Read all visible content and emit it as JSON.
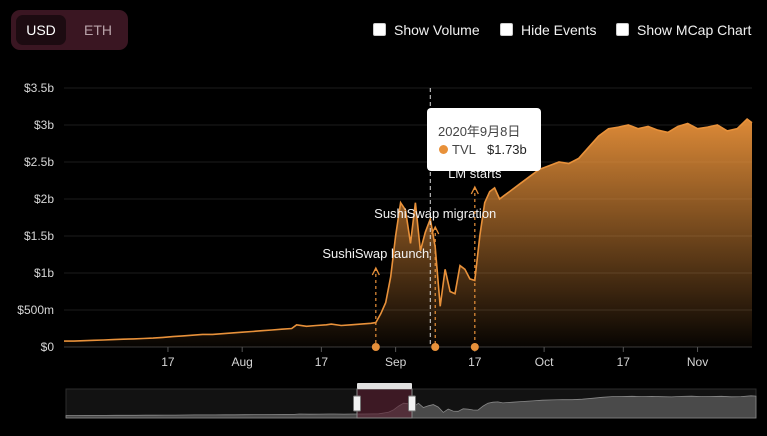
{
  "currency_toggle": {
    "options": [
      "USD",
      "ETH"
    ],
    "selected": "USD"
  },
  "options": {
    "show_volume": {
      "label": "Show Volume",
      "checked": false
    },
    "hide_events": {
      "label": "Hide Events",
      "checked": false
    },
    "show_mcap": {
      "label": "Show MCap Chart",
      "checked": false
    }
  },
  "tooltip": {
    "date": "2020年9月8日",
    "series": "TVL",
    "value": "$1.73b"
  },
  "colors": {
    "line": "#e8913a",
    "background": "#000000",
    "toggle_bg": "#3a1622",
    "navigator_highlight": "#5a1e30"
  },
  "chart_data": {
    "type": "area",
    "series": [
      {
        "name": "TVL",
        "unit": "USD billions",
        "points": [
          [
            "2020-06-26",
            0.08
          ],
          [
            "2020-06-28",
            0.08
          ],
          [
            "2020-06-30",
            0.085
          ],
          [
            "2020-07-02",
            0.09
          ],
          [
            "2020-07-04",
            0.095
          ],
          [
            "2020-07-06",
            0.1
          ],
          [
            "2020-07-08",
            0.105
          ],
          [
            "2020-07-10",
            0.11
          ],
          [
            "2020-07-12",
            0.115
          ],
          [
            "2020-07-14",
            0.12
          ],
          [
            "2020-07-16",
            0.13
          ],
          [
            "2020-07-18",
            0.14
          ],
          [
            "2020-07-20",
            0.15
          ],
          [
            "2020-07-22",
            0.16
          ],
          [
            "2020-07-24",
            0.17
          ],
          [
            "2020-07-26",
            0.17
          ],
          [
            "2020-07-28",
            0.18
          ],
          [
            "2020-07-30",
            0.19
          ],
          [
            "2020-08-01",
            0.2
          ],
          [
            "2020-08-03",
            0.21
          ],
          [
            "2020-08-05",
            0.22
          ],
          [
            "2020-08-07",
            0.23
          ],
          [
            "2020-08-09",
            0.24
          ],
          [
            "2020-08-11",
            0.25
          ],
          [
            "2020-08-12",
            0.3
          ],
          [
            "2020-08-14",
            0.28
          ],
          [
            "2020-08-16",
            0.29
          ],
          [
            "2020-08-18",
            0.3
          ],
          [
            "2020-08-19",
            0.31
          ],
          [
            "2020-08-21",
            0.29
          ],
          [
            "2020-08-23",
            0.3
          ],
          [
            "2020-08-25",
            0.31
          ],
          [
            "2020-08-27",
            0.32
          ],
          [
            "2020-08-28",
            0.33
          ],
          [
            "2020-08-29",
            0.45
          ],
          [
            "2020-08-30",
            0.6
          ],
          [
            "2020-08-31",
            0.95
          ],
          [
            "2020-09-01",
            1.5
          ],
          [
            "2020-09-02",
            1.95
          ],
          [
            "2020-09-03",
            1.85
          ],
          [
            "2020-09-04",
            1.4
          ],
          [
            "2020-09-05",
            1.95
          ],
          [
            "2020-09-06",
            1.3
          ],
          [
            "2020-09-07",
            1.55
          ],
          [
            "2020-09-08",
            1.73
          ],
          [
            "2020-09-09",
            1.35
          ],
          [
            "2020-09-10",
            0.55
          ],
          [
            "2020-09-11",
            1.05
          ],
          [
            "2020-09-12",
            0.75
          ],
          [
            "2020-09-13",
            0.72
          ],
          [
            "2020-09-14",
            1.1
          ],
          [
            "2020-09-15",
            1.05
          ],
          [
            "2020-09-16",
            0.92
          ],
          [
            "2020-09-17",
            0.9
          ],
          [
            "2020-09-18",
            1.5
          ],
          [
            "2020-09-19",
            1.95
          ],
          [
            "2020-09-20",
            2.1
          ],
          [
            "2020-09-21",
            2.15
          ],
          [
            "2020-09-22",
            2.0
          ],
          [
            "2020-09-23",
            2.05
          ],
          [
            "2020-09-24",
            2.1
          ],
          [
            "2020-09-26",
            2.2
          ],
          [
            "2020-09-28",
            2.3
          ],
          [
            "2020-09-30",
            2.4
          ],
          [
            "2020-10-02",
            2.45
          ],
          [
            "2020-10-04",
            2.5
          ],
          [
            "2020-10-06",
            2.48
          ],
          [
            "2020-10-08",
            2.55
          ],
          [
            "2020-10-10",
            2.7
          ],
          [
            "2020-10-12",
            2.85
          ],
          [
            "2020-10-14",
            2.95
          ],
          [
            "2020-10-16",
            2.97
          ],
          [
            "2020-10-18",
            3.0
          ],
          [
            "2020-10-20",
            2.95
          ],
          [
            "2020-10-22",
            2.98
          ],
          [
            "2020-10-24",
            2.93
          ],
          [
            "2020-10-26",
            2.9
          ],
          [
            "2020-10-28",
            2.98
          ],
          [
            "2020-10-30",
            3.02
          ],
          [
            "2020-11-01",
            2.95
          ],
          [
            "2020-11-03",
            2.97
          ],
          [
            "2020-11-05",
            3.0
          ],
          [
            "2020-11-07",
            2.92
          ],
          [
            "2020-11-09",
            2.95
          ],
          [
            "2020-11-11",
            3.08
          ],
          [
            "2020-11-12",
            3.03
          ]
        ]
      }
    ],
    "yticks": [
      "$0",
      "$500m",
      "$1b",
      "$1.5b",
      "$2b",
      "$2.5b",
      "$3b",
      "$3.5b"
    ],
    "ylim": [
      0,
      3.5
    ],
    "xticks": [
      {
        "label": "17",
        "date": "2020-07-17"
      },
      {
        "label": "Aug",
        "date": "2020-08-01"
      },
      {
        "label": "17",
        "date": "2020-08-17"
      },
      {
        "label": "Sep",
        "date": "2020-09-01"
      },
      {
        "label": "17",
        "date": "2020-09-17"
      },
      {
        "label": "Oct",
        "date": "2020-10-01"
      },
      {
        "label": "17",
        "date": "2020-10-17"
      },
      {
        "label": "Nov",
        "date": "2020-11-01"
      }
    ],
    "xlim": [
      "2020-06-26",
      "2020-11-12"
    ],
    "events": [
      {
        "label": "SushiSwap launch",
        "date": "2020-08-28"
      },
      {
        "label": "SushiSwap migration",
        "date": "2020-09-09"
      },
      {
        "label": "LM starts",
        "date": "2020-09-17"
      }
    ],
    "crosshair_date": "2020-09-08",
    "grid": true
  }
}
